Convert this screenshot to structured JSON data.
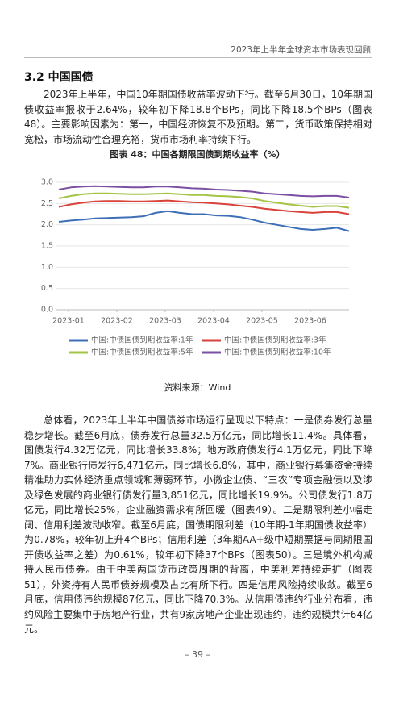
{
  "header": {
    "title": "2023年上半年全球资本市场表现回顾"
  },
  "section": {
    "heading": "3.2 中国国债"
  },
  "paragraphs": [
    "2023年上半年，中国10年期国债收益率波动下行。截至6月30日，10年期国债收益率报收于2.64%，较年初下降18.8个BPs，同比下降18.5个BPs（图表48）。主要影响因素为：第一，中国经济恢复不及预期。第二，货币政策保持相对宽松，市场流动性合理充裕，货币市场利率持续下行。",
    "总体看，2023年上半年中国债券市场运行呈现以下特点：一是债券发行总量稳步增长。截至6月底，债券发行总量32.5万亿元，同比增长11.4%。具体看，国债发行4.32万亿元，同比增长33.8%；地方政府债发行4.1万亿元，同比下降7%。商业银行债发行6,471亿元，同比增长6.8%，其中，商业银行募集资金持续精准助力实体经济重点领域和薄弱环节，小微企业债、“三农”专项金融债以及涉及绿色发展的商业银行债发行量3,851亿元，同比增长19.9%。公司债发行1.8万亿元，同比增长25%，企业融资需求有所回暖（图表49）。二是期限利差小幅走阔、信用利差波动收窄。截至6月底，国债期限利差（10年期-1年期国债收益率）为0.78%，较年初上升4个BPs；信用利差（3年期AA+级中短期票据与同期限国开债收益率之差）为0.61%，较年初下降37个BPs（图表50）。三是境外机构减持人民币债券。由于中美两国货币政策周期的背离，中美利差持续走扩（图表51），外资持有人民币债券规模及占比有所下行。四是信用风险持续收敛。截至6月底，信用债违约规模87亿元，同比下降70.3%。从信用债违约行业分布看，违约风险主要集中于房地产行业，共有9家房地产企业出现违约，违约规模共计64亿元。"
  ],
  "chart_data": {
    "type": "line",
    "title": "图表 48：中国各期限国债到期收益率（%）",
    "x": [
      0.8,
      1.05,
      1.3,
      1.55,
      1.8,
      2.05,
      2.3,
      2.55,
      2.8,
      3.05,
      3.3,
      3.55,
      3.8,
      4.05,
      4.3,
      4.55,
      4.8,
      5.05,
      5.3,
      5.55,
      5.8,
      6.05,
      6.3,
      6.55,
      6.8
    ],
    "xlim": [
      0.8,
      6.8
    ],
    "xticks": [
      {
        "value": 1,
        "label": "2023-01"
      },
      {
        "value": 2,
        "label": "2023-02"
      },
      {
        "value": 3,
        "label": "2023-03"
      },
      {
        "value": 4,
        "label": "2023-04"
      },
      {
        "value": 5,
        "label": "2023-05"
      },
      {
        "value": 6,
        "label": "2023-06"
      }
    ],
    "ylim": [
      0,
      3
    ],
    "yticks": [
      {
        "value": 0,
        "label": "0.0"
      },
      0.5,
      {
        "value": 1,
        "label": "1.0"
      },
      1.5,
      {
        "value": 2,
        "label": "2.0"
      },
      2.5,
      {
        "value": 3,
        "label": "3.0"
      }
    ],
    "grid": true,
    "series": [
      {
        "name": "中国:中债国债到期收益率:1年",
        "color": "#3d6fb6",
        "values": [
          2.07,
          2.1,
          2.12,
          2.15,
          2.16,
          2.17,
          2.18,
          2.2,
          2.28,
          2.32,
          2.28,
          2.25,
          2.25,
          2.22,
          2.21,
          2.18,
          2.12,
          2.05,
          2.0,
          1.95,
          1.9,
          1.88,
          1.9,
          1.93,
          1.85
        ]
      },
      {
        "name": "中国:中债国债到期收益率:3年",
        "color": "#d9423a",
        "values": [
          2.42,
          2.48,
          2.52,
          2.55,
          2.56,
          2.56,
          2.55,
          2.55,
          2.56,
          2.57,
          2.55,
          2.53,
          2.52,
          2.5,
          2.48,
          2.45,
          2.42,
          2.38,
          2.35,
          2.32,
          2.3,
          2.28,
          2.3,
          2.3,
          2.25
        ]
      },
      {
        "name": "中国:中债国债到期收益率:5年",
        "color": "#a4c444",
        "values": [
          2.62,
          2.68,
          2.72,
          2.74,
          2.74,
          2.73,
          2.72,
          2.72,
          2.73,
          2.74,
          2.72,
          2.7,
          2.7,
          2.68,
          2.67,
          2.65,
          2.62,
          2.56,
          2.52,
          2.48,
          2.45,
          2.42,
          2.44,
          2.44,
          2.4
        ]
      },
      {
        "name": "中国:中债国债到期收益率:10年",
        "color": "#7b4ea3",
        "values": [
          2.83,
          2.88,
          2.9,
          2.91,
          2.9,
          2.89,
          2.88,
          2.88,
          2.9,
          2.9,
          2.88,
          2.86,
          2.85,
          2.83,
          2.82,
          2.8,
          2.78,
          2.74,
          2.72,
          2.7,
          2.68,
          2.67,
          2.68,
          2.68,
          2.64
        ]
      }
    ],
    "source": "资料来源：Wind"
  },
  "footer": {
    "page": "– 39 –"
  }
}
